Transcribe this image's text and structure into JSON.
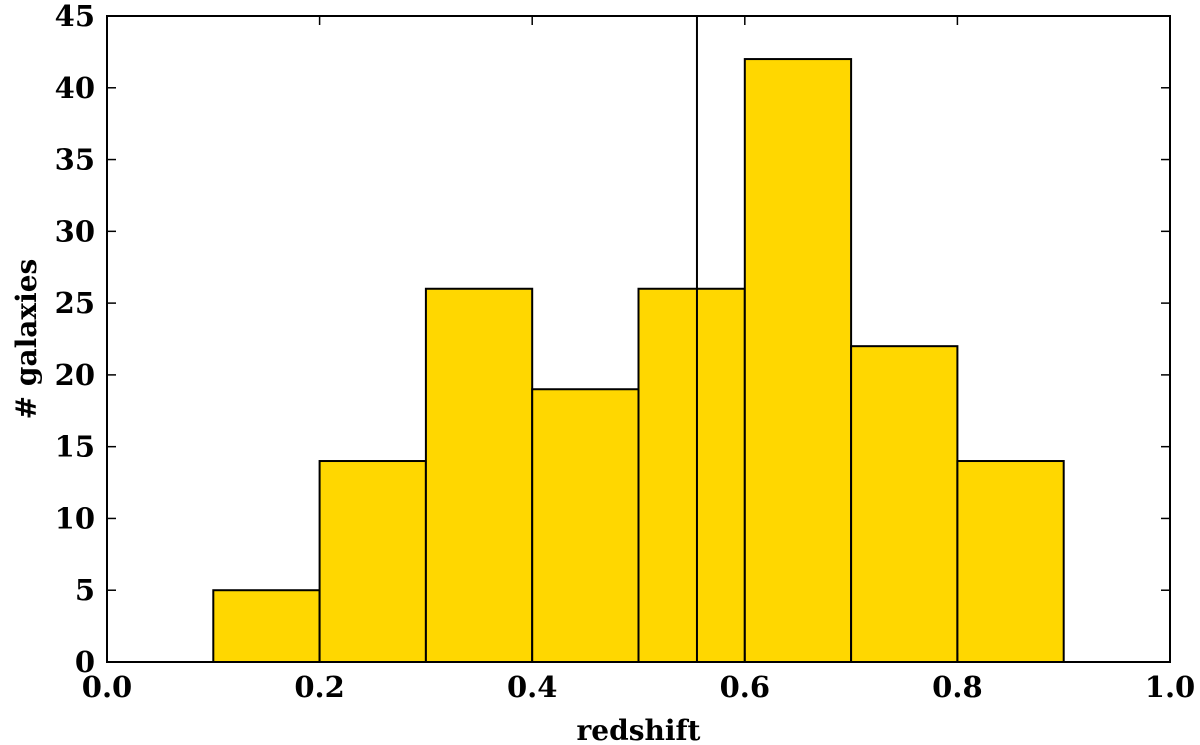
{
  "chart_data": {
    "type": "bar",
    "subtype": "histogram",
    "bin_edges": [
      0.1,
      0.2,
      0.3,
      0.4,
      0.5,
      0.6,
      0.7,
      0.8,
      0.9
    ],
    "values": [
      5,
      14,
      26,
      19,
      26,
      42,
      22,
      14
    ],
    "xlabel": "redshift",
    "ylabel": "# galaxies",
    "xlim": [
      0.0,
      1.0
    ],
    "ylim": [
      0,
      45
    ],
    "xticks": [
      "0.0",
      "0.2",
      "0.4",
      "0.6",
      "0.8",
      "1.0"
    ],
    "xtick_values": [
      0.0,
      0.2,
      0.4,
      0.6,
      0.8,
      1.0
    ],
    "yticks": [
      "0",
      "5",
      "10",
      "15",
      "20",
      "25",
      "30",
      "35",
      "40",
      "45"
    ],
    "ytick_values": [
      0,
      5,
      10,
      15,
      20,
      25,
      30,
      35,
      40,
      45
    ],
    "vertical_line_x": 0.555,
    "grid": false,
    "legend": "none",
    "bar_color": "#FFD700",
    "edge_color": "#000000"
  }
}
